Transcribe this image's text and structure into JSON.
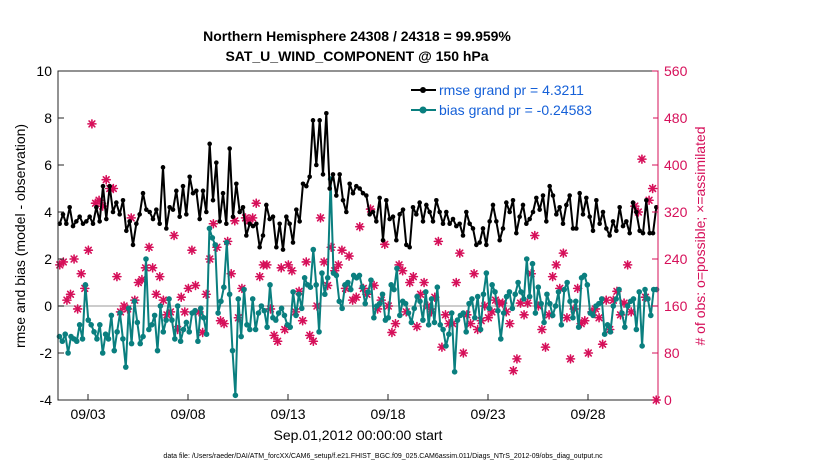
{
  "chart_data": {
    "type": "line",
    "title": "Northern Hemisphere 24308 / 24318 = 99.959%",
    "subtitle": "SAT_U_WIND_COMPONENT @ 150 hPa",
    "xlabel": "Sep.01,2012 00:00:00 start",
    "ylabel": "rmse and bias (model - observation)",
    "y2label": "# of obs: o=possible; ×=assimilated",
    "x_tick_labels": [
      "09/03",
      "09/08",
      "09/13",
      "09/18",
      "09/23",
      "09/28"
    ],
    "x_tick_days": [
      2,
      7,
      12,
      17,
      22,
      27
    ],
    "xlim_days": [
      0.5,
      30.5
    ],
    "ylim": [
      -4,
      10
    ],
    "y_ticks": [
      -4,
      -2,
      0,
      2,
      4,
      6,
      8,
      10
    ],
    "y2lim": [
      0,
      560
    ],
    "y2_ticks": [
      0,
      80,
      160,
      240,
      320,
      400,
      480,
      560
    ],
    "grid": false,
    "legend_position": "top-right",
    "footnote": "data file: /Users/raeder/DAI/ATM_forcXX/CAM6_setup/f.e21.FHIST_BGC.f09_025.CAM6assim.011/Diags_NTrS_2012-09/obs_diag_output.nc",
    "colors": {
      "rmse": "#000000",
      "bias": "#0a7f7f",
      "obs": "#d6105a",
      "zero_line": "#bbbbbb"
    },
    "series": [
      {
        "name": "rmse grand pr = 4.3211",
        "values": [
          3.5,
          3.9,
          3.5,
          4.2,
          3.4,
          3.6,
          3.8,
          3.5,
          3.6,
          3.8,
          3.5,
          4.2,
          3.6,
          5.1,
          3.7,
          5.1,
          4.0,
          4.4,
          3.9,
          4.5,
          3.2,
          3.6,
          2.6,
          3.5,
          3.9,
          4.8,
          4.1,
          4.0,
          3.7,
          4.1,
          3.5,
          5.9,
          3.3,
          4.2,
          4.1,
          4.9,
          3.8,
          5.1,
          3.9,
          5.5,
          4.8,
          4.9,
          3.7,
          4.9,
          4.0,
          6.9,
          4.5,
          6.1,
          3.6,
          4.8,
          3.5,
          6.7,
          3.8,
          5.2,
          4.0,
          4.2,
          3.0,
          3.5,
          3.4,
          3.5,
          2.5,
          3.0,
          4.3,
          3.7,
          3.8,
          2.5,
          3.5,
          2.4,
          3.8,
          3.5,
          2.7,
          4.1,
          3.6,
          5.2,
          5.1,
          5.5,
          7.9,
          6.0,
          7.9,
          5.6,
          8.2,
          5.0,
          5.6,
          4.7,
          5.6,
          4.5,
          4.0,
          5.2,
          4.8,
          5.1,
          5.0,
          4.8,
          4.7,
          3.9,
          4.0,
          3.6,
          4.6,
          2.8,
          4.5,
          3.7,
          3.8,
          2.8,
          3.9,
          4.1,
          2.6,
          2.5,
          4.2,
          3.9,
          4.4,
          3.6,
          4.3,
          4.0,
          3.6,
          4.5,
          4.0,
          3.5,
          4.0,
          3.5,
          3.7,
          3.4,
          3.5,
          3.0,
          4.0,
          3.5,
          3.3,
          2.6,
          2.7,
          3.3,
          2.6,
          3.6,
          4.3,
          3.6,
          2.8,
          3.3,
          4.4,
          4.0,
          4.5,
          3.1,
          3.8,
          4.3,
          3.5,
          3.7,
          4.0,
          4.6,
          4.1,
          4.7,
          3.6,
          5.1,
          4.7,
          3.9,
          4.2,
          3.5,
          4.3,
          4.7,
          3.3,
          3.3,
          4.8,
          3.9,
          4.6,
          3.8,
          3.2,
          4.5,
          3.5,
          4.0,
          3.3,
          3.0,
          3.6,
          3.2,
          4.2,
          3.4,
          3.6,
          3.1,
          4.4,
          4.0,
          3.2,
          3.1,
          4.5,
          3.1,
          3.1,
          4.2
        ],
        "color": "#000000",
        "marker": "point"
      },
      {
        "name": "bias grand pr = -0.24583",
        "values": [
          -1.3,
          -1.5,
          -1.2,
          -2.0,
          -1.3,
          -1.4,
          -1.5,
          -0.8,
          -1.4,
          0.9,
          -0.6,
          -0.8,
          -1.1,
          -1.4,
          -0.8,
          -2.0,
          -1.2,
          -1.4,
          -0.4,
          -1.9,
          -1.1,
          -0.3,
          -1.4,
          -2.6,
          -0.1,
          -1.6,
          0.2,
          -0.7,
          -1.6,
          -1.3,
          2.0,
          -1.0,
          -0.8,
          -0.4,
          -1.9,
          0.0,
          -1.1,
          -0.6,
          0.3,
          -0.6,
          -1.4,
          0.0,
          -1.5,
          -1.0,
          -0.7,
          -1.1,
          -0.3,
          -0.2,
          -1.5,
          -0.1,
          -0.5,
          -1.2,
          3.3,
          2.9,
          2.6,
          -0.3,
          0.2,
          0.8,
          2.7,
          0.5,
          -1.9,
          -3.8,
          0.3,
          -1.3,
          0.7,
          -0.8,
          -1.0,
          0.3,
          -1.0,
          -0.3,
          0.0,
          -0.2,
          -0.9,
          0.9,
          -0.5,
          -0.6,
          -0.3,
          -0.1,
          -0.4,
          -0.8,
          -0.9,
          0.6,
          -0.4,
          0.5,
          -0.1,
          1.2,
          0.9,
          0.8,
          2.4,
          0.9,
          -1.1,
          1.4,
          0.5,
          1.2,
          5.4,
          1.4,
          1.3,
          0.2,
          -0.1,
          0.9,
          1.0,
          0.7,
          1.3,
          1.2,
          1.3,
          0.8,
          0.1,
          0.6,
          1.1,
          -0.5,
          0.0,
          0.1,
          0.5,
          -0.6,
          -0.5,
          0.9,
          0.7,
          1.6,
          -0.4,
          0.2,
          0.1,
          -0.3,
          -0.7,
          -0.1,
          0.4,
          0.2,
          -0.6,
          0.6,
          -0.8,
          0.3,
          -0.7,
          0.8,
          -0.8,
          -1.0,
          -1.7,
          -1.2,
          -0.3,
          -2.8,
          -0.6,
          -0.4,
          -0.3,
          -1.1,
          0.1,
          0.3,
          -0.5,
          0.4,
          -1.0,
          0.5,
          1.4,
          -0.1,
          0.9,
          0.6,
          -0.2,
          -1.4,
          -0.3,
          0.4,
          0.6,
          -0.1,
          0.5,
          1.0,
          0.6,
          0.3,
          2.0,
          0.4,
          1.8,
          -0.3,
          0.8,
          0.1,
          -0.7,
          0.5,
          0.1,
          -0.4,
          0.0,
          0.6,
          -0.8,
          0.7,
          1.0,
          0.2,
          -0.5,
          0.2,
          -0.9,
          1.2,
          1.3,
          0.9,
          -0.3,
          -0.4,
          0.0,
          0.1,
          0.3,
          -1.2,
          -0.8,
          -1.1,
          0.0,
          0.3,
          0.7,
          -0.3,
          -0.9,
          0.0,
          0.2,
          0.3,
          -1.0,
          0.6,
          -1.7,
          0.7,
          0.3,
          -0.4,
          0.7,
          0.7
        ],
        "color": "#0a7f7f",
        "marker": "circle"
      }
    ],
    "obs_counts": {
      "name": "# of obs",
      "marker": "asterisk",
      "color": "#d6105a",
      "values": [
        230,
        235,
        170,
        180,
        240,
        155,
        215,
        190,
        255,
        470,
        335,
        340,
        330,
        375,
        360,
        360,
        210,
        150,
        160,
        155,
        310,
        170,
        200,
        205,
        225,
        260,
        225,
        180,
        210,
        170,
        145,
        150,
        280,
        120,
        175,
        150,
        190,
        255,
        195,
        150,
        115,
        180,
        240,
        300,
        260,
        135,
        130,
        270,
        215,
        305,
        140,
        190,
        310,
        305,
        310,
        335,
        210,
        230,
        230,
        155,
        110,
        100,
        225,
        120,
        230,
        220,
        150,
        185,
        135,
        235,
        110,
        100,
        160,
        310,
        235,
        195,
        260,
        220,
        230,
        255,
        190,
        245,
        170,
        175,
        295,
        190,
        180,
        325,
        195,
        155,
        170,
        265,
        160,
        115,
        130,
        230,
        220,
        150,
        200,
        210,
        125,
        180,
        200,
        160,
        150,
        175,
        270,
        90,
        145,
        130,
        130,
        200,
        250,
        80,
        145,
        130,
        215,
        120,
        135,
        160,
        140,
        150,
        170,
        165,
        165,
        150,
        130,
        50,
        70,
        165,
        145,
        165,
        215,
        280,
        160,
        120,
        90,
        145,
        210,
        230,
        190,
        250,
        140,
        70,
        155,
        190,
        130,
        135,
        80,
        150,
        155,
        140,
        95,
        170,
        120,
        170,
        185,
        145,
        165,
        230,
        150,
        330,
        320,
        410,
        175,
        340,
        360,
        0
      ]
    }
  }
}
